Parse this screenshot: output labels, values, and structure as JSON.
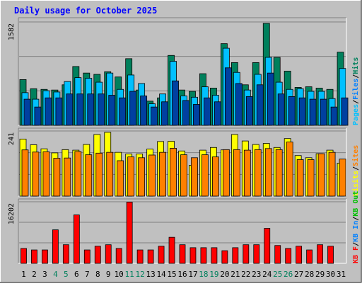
{
  "chart_data": {
    "type": "bar",
    "title": "Daily usage for October 2025",
    "categories": [
      "1",
      "2",
      "3",
      "4",
      "5",
      "6",
      "7",
      "8",
      "9",
      "10",
      "11",
      "12",
      "13",
      "14",
      "15",
      "16",
      "17",
      "18",
      "19",
      "20",
      "21",
      "22",
      "23",
      "24",
      "25",
      "26",
      "27",
      "28",
      "29",
      "30",
      "31"
    ],
    "weekend_days": [
      "4",
      "5",
      "11",
      "12",
      "18",
      "19",
      "25",
      "26"
    ],
    "colors": {
      "background": "#C0C0C0",
      "title_text": "#0000FF",
      "hits": "#00805C",
      "files": "#00C0FF",
      "pages": "#00C0FF",
      "visits": "#FFFF00",
      "sites": "#FF8000",
      "kb_in": "#0080FF",
      "kb_out": "#00C000",
      "kb_f": "#FF0000",
      "weekend_label": "#00805C",
      "weekday_label": "#000000"
    },
    "panels": [
      {
        "name": "pages-files-hits",
        "ymax_label": "1582",
        "ymax": 1582,
        "series": [
          {
            "name": "Hits",
            "color": "#00805C",
            "values": [
              700,
              560,
              550,
              540,
              620,
              900,
              800,
              780,
              820,
              740,
              1020,
              540,
              370,
              420,
              1070,
              540,
              520,
              790,
              570,
              1250,
              960,
              620,
              960,
              1560,
              1040,
              830,
              580,
              590,
              570,
              550,
              1120
            ]
          },
          {
            "name": "Files",
            "color": "#00C0FF",
            "values": [
              500,
              400,
              530,
              510,
              670,
              730,
              720,
              660,
              800,
              550,
              770,
              640,
              330,
              480,
              980,
              450,
              430,
              590,
              460,
              1180,
              810,
              540,
              780,
              1040,
              660,
              550,
              560,
              520,
              520,
              410,
              870
            ]
          },
          {
            "name": "Pages",
            "color": "#0040A0",
            "values": [
              400,
              280,
              420,
              420,
              480,
              480,
              480,
              480,
              460,
              420,
              520,
              450,
              280,
              360,
              680,
              380,
              320,
              420,
              360,
              880,
              640,
              440,
              620,
              800,
              480,
              440,
              420,
              400,
              400,
              280,
              420
            ]
          }
        ],
        "axis_labels": [
          {
            "text": "Pages",
            "color": "#00C0FF"
          },
          {
            "text": "/",
            "color": "#000000"
          },
          {
            "text": "Files",
            "color": "#0080FF"
          },
          {
            "text": "/",
            "color": "#000000"
          },
          {
            "text": "Hits",
            "color": "#00805C"
          }
        ]
      },
      {
        "name": "visits-sites",
        "ymax_label": "241",
        "ymax": 241,
        "series": [
          {
            "name": "Visits",
            "color": "#FFFF00",
            "values": [
              211,
              190,
              175,
              160,
              172,
              170,
              191,
              228,
              236,
              162,
              156,
              156,
              174,
              202,
              203,
              167,
              114,
              170,
              180,
              171,
              228,
              204,
              191,
              195,
              180,
              213,
              150,
              142,
              157,
              170,
              122
            ]
          },
          {
            "name": "Sites",
            "color": "#FF8000",
            "values": [
              171,
              163,
              164,
              140,
              141,
              165,
              153,
              159,
              162,
              131,
              145,
              142,
              152,
              162,
              177,
              153,
              142,
              153,
              145,
              172,
              172,
              170,
              172,
              176,
              172,
              200,
              135,
              135,
              157,
              162,
              137
            ]
          }
        ],
        "axis_labels": [
          {
            "text": "Visits",
            "color": "#FFFF00"
          },
          {
            "text": "/",
            "color": "#000000"
          },
          {
            "text": "Sites",
            "color": "#FF8000"
          }
        ]
      },
      {
        "name": "kb",
        "ymax_label": "16202",
        "ymax": 16202,
        "series": [
          {
            "name": "KB F",
            "color": "#FF0000",
            "values": [
              3920,
              3530,
              3530,
              8820,
              4900,
              12740,
              3530,
              4510,
              4900,
              3920,
              16100,
              3530,
              3530,
              4510,
              6860,
              4900,
              4120,
              4120,
              4120,
              3330,
              4120,
              4900,
              4900,
              9210,
              4700,
              3920,
              4510,
              3530,
              4900,
              4510,
              0
            ]
          }
        ],
        "axis_labels": [
          {
            "text": "KB F",
            "color": "#FF0000"
          },
          {
            "text": "/",
            "color": "#000000"
          },
          {
            "text": "KB In",
            "color": "#0080FF"
          },
          {
            "text": "/",
            "color": "#000000"
          },
          {
            "text": "KB Out",
            "color": "#00C000"
          }
        ]
      }
    ]
  }
}
